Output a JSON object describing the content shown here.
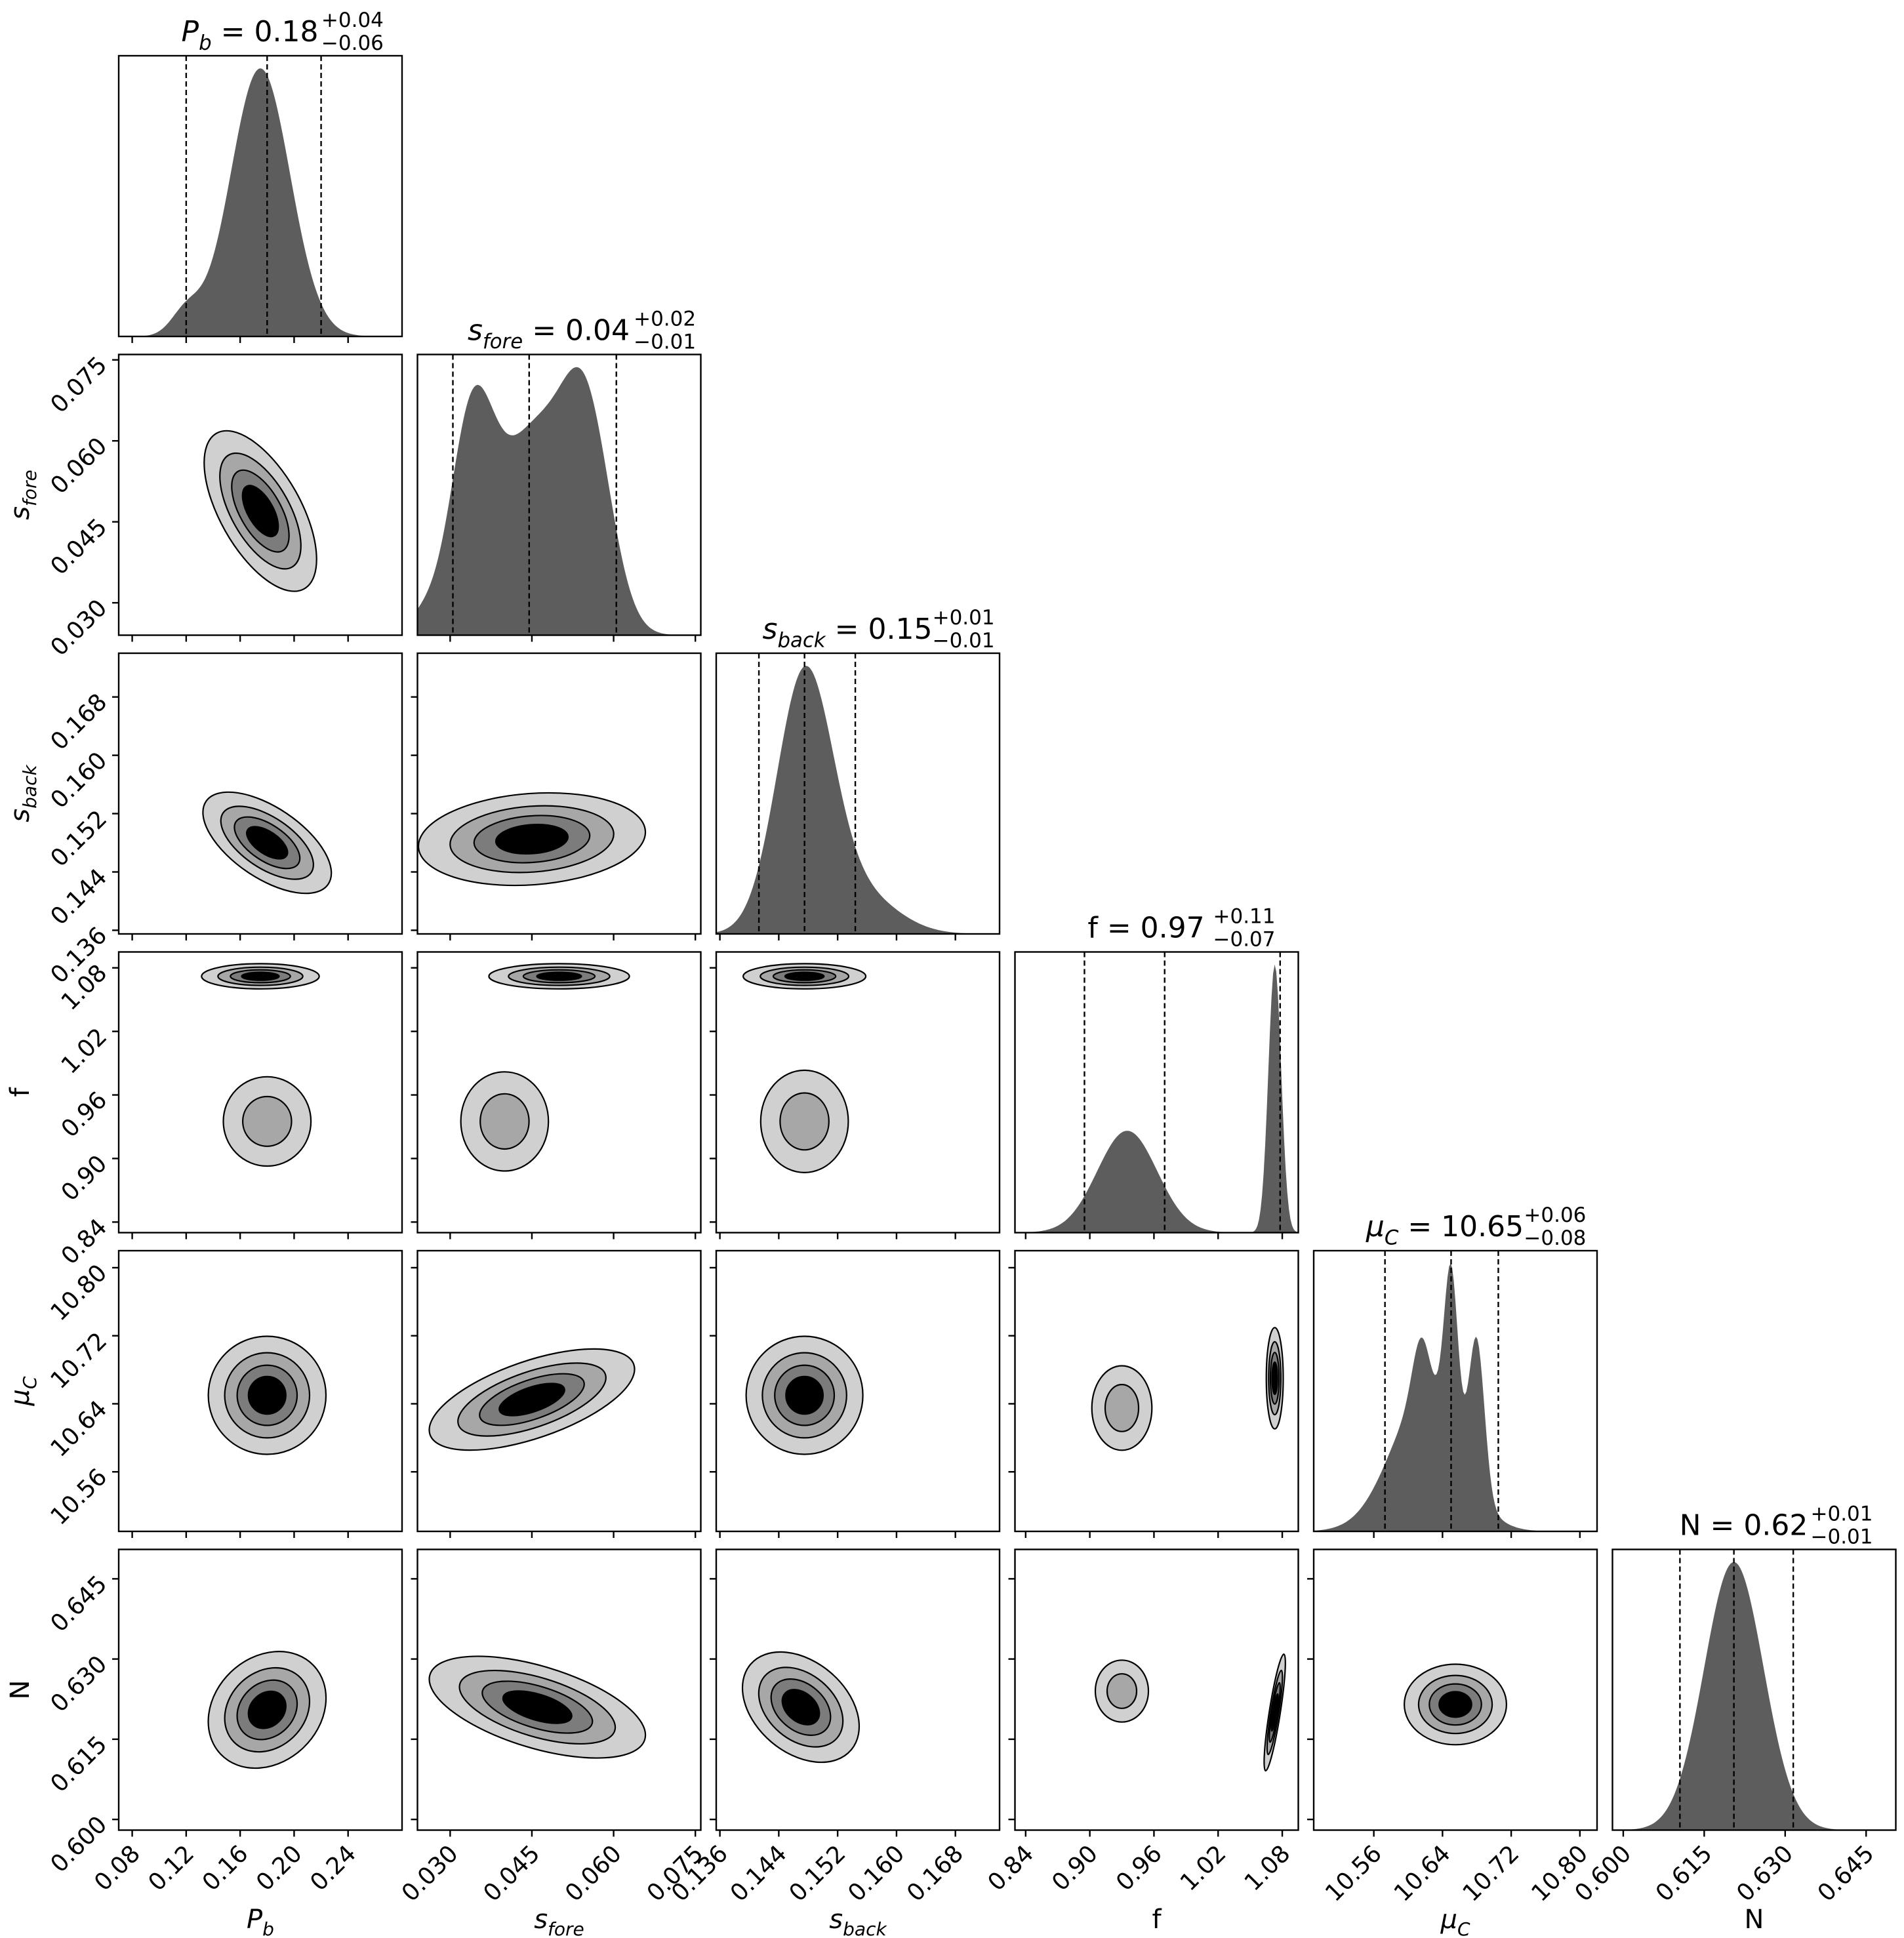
{
  "chart_data": {
    "type": "corner",
    "parameters": [
      {
        "key": "Pb",
        "label": "P",
        "sub": "b",
        "range": [
          0.07,
          0.28
        ],
        "ticks": [
          "0.08",
          "0.12",
          "0.16",
          "0.20",
          "0.24"
        ],
        "title": {
          "head": "P",
          "sub": "b",
          "tail": " = 0.18",
          "plus": "+0.04",
          "minus": "−0.06"
        }
      },
      {
        "key": "sfore",
        "label": "s",
        "sub": "fore",
        "range": [
          0.024,
          0.076
        ],
        "ticks": [
          "0.030",
          "0.045",
          "0.060",
          "0.075"
        ],
        "title": {
          "head": "s",
          "sub": "fore",
          "tail": " = 0.04",
          "plus": "+0.02",
          "minus": "−0.01"
        }
      },
      {
        "key": "sback",
        "label": "s",
        "sub": "back",
        "range": [
          0.1355,
          0.174
        ],
        "ticks": [
          "0.136",
          "0.144",
          "0.152",
          "0.160",
          "0.168"
        ],
        "title": {
          "head": "s",
          "sub": "back",
          "tail": " = 0.15",
          "plus": "+0.01",
          "minus": "−0.01"
        }
      },
      {
        "key": "f",
        "label": "f",
        "sub": "",
        "range": [
          0.83,
          1.095
        ],
        "ticks": [
          "0.84",
          "0.90",
          "0.96",
          "1.02",
          "1.08"
        ],
        "title": {
          "head": "f",
          "sub": "",
          "tail": " = 0.97",
          "plus": "+0.11",
          "minus": "−0.07"
        }
      },
      {
        "key": "muC",
        "label": "μ",
        "sub": "C",
        "range": [
          10.49,
          10.82
        ],
        "ticks": [
          "10.56",
          "10.64",
          "10.72",
          "10.80"
        ],
        "title": {
          "head": "μ",
          "sub": "C",
          "tail": " = 10.65",
          "plus": "+0.06",
          "minus": "−0.08"
        }
      },
      {
        "key": "N",
        "label": "N",
        "sub": "",
        "range": [
          0.598,
          0.6505
        ],
        "ticks": [
          "0.600",
          "0.615",
          "0.630",
          "0.645"
        ],
        "title": {
          "head": "N",
          "sub": "",
          "tail": " = 0.62",
          "plus": "+0.01",
          "minus": "−0.01"
        }
      }
    ],
    "quantiles": [
      [
        0.12,
        0.18,
        0.22
      ],
      [
        0.0305,
        0.0445,
        0.0605
      ],
      [
        0.1413,
        0.1475,
        0.1544
      ],
      [
        0.895,
        0.97,
        1.078
      ],
      [
        10.573,
        10.65,
        10.705
      ],
      [
        0.6105,
        0.6205,
        0.6315
      ]
    ],
    "marginals": [
      [
        {
          "mu": 0.12,
          "sd": 0.011,
          "w": 0.08
        },
        {
          "mu": 0.175,
          "sd": 0.022,
          "w": 0.9
        }
      ],
      [
        {
          "mu": 0.034,
          "sd": 0.004,
          "w": 0.6
        },
        {
          "mu": 0.045,
          "sd": 0.006,
          "w": 0.55
        },
        {
          "mu": 0.055,
          "sd": 0.0045,
          "w": 0.6
        },
        {
          "mu": 0.025,
          "sd": 0.003,
          "w": 0.05
        }
      ],
      [
        {
          "mu": 0.1475,
          "sd": 0.0038,
          "w": 1
        },
        {
          "mu": 0.155,
          "sd": 0.005,
          "w": 0.15
        }
      ],
      [
        {
          "mu": 0.935,
          "sd": 0.028,
          "w": 0.38
        },
        {
          "mu": 1.073,
          "sd": 0.006,
          "w": 1.0
        }
      ],
      [
        {
          "mu": 10.62,
          "sd": 0.04,
          "w": 0.45
        },
        {
          "mu": 10.65,
          "sd": 0.008,
          "w": 0.55
        },
        {
          "mu": 10.68,
          "sd": 0.009,
          "w": 0.5
        },
        {
          "mu": 10.615,
          "sd": 0.01,
          "w": 0.2
        }
      ],
      [
        {
          "mu": 0.6205,
          "sd": 0.0055,
          "w": 1
        }
      ]
    ],
    "blobs": {
      "1-0": [
        {
          "cx": 0.175,
          "cy": 0.047,
          "sx": 0.021,
          "sy": 0.0075,
          "r": -0.6
        },
        {
          "cx": 0.12,
          "cy": 0.042,
          "sx": 0.004,
          "sy": 0.0015,
          "r": 0,
          "w": 0.12
        }
      ],
      "2-0": [
        {
          "cx": 0.18,
          "cy": 0.148,
          "sx": 0.024,
          "sy": 0.0035,
          "r": -0.6
        }
      ],
      "2-1": [
        {
          "cx": 0.045,
          "cy": 0.1485,
          "sx": 0.0105,
          "sy": 0.0032,
          "r": 0.15
        }
      ],
      "3-0": [
        {
          "cx": 0.175,
          "cy": 1.072,
          "sx": 0.022,
          "sy": 0.006,
          "r": 0,
          "w": 1.0
        },
        {
          "cx": 0.18,
          "cy": 0.935,
          "sx": 0.02,
          "sy": 0.025,
          "r": 0,
          "w": 0.55
        },
        {
          "cx": 0.12,
          "cy": 0.957,
          "sx": 0.003,
          "sy": 0.008,
          "r": 0,
          "w": 0.06
        }
      ],
      "3-1": [
        {
          "cx": 0.05,
          "cy": 1.072,
          "sx": 0.0065,
          "sy": 0.006,
          "r": 0,
          "w": 1.0
        },
        {
          "cx": 0.04,
          "cy": 0.935,
          "sx": 0.0055,
          "sy": 0.025,
          "r": 0,
          "w": 0.55
        }
      ],
      "3-2": [
        {
          "cx": 0.1475,
          "cy": 1.072,
          "sx": 0.0042,
          "sy": 0.006,
          "r": 0,
          "w": 1.0
        },
        {
          "cx": 0.1475,
          "cy": 0.935,
          "sx": 0.0042,
          "sy": 0.025,
          "r": 0,
          "w": 0.55
        }
      ],
      "4-0": [
        {
          "cx": 0.18,
          "cy": 10.65,
          "sx": 0.022,
          "sy": 0.035,
          "r": 0
        },
        {
          "cx": 0.12,
          "cy": 10.6,
          "sx": 0.002,
          "sy": 0.005,
          "r": 0,
          "w": 0.05
        }
      ],
      "4-1": [
        {
          "cx": 0.045,
          "cy": 10.645,
          "sx": 0.0095,
          "sy": 0.03,
          "r": 0.6
        }
      ],
      "4-2": [
        {
          "cx": 0.1475,
          "cy": 10.65,
          "sx": 0.004,
          "sy": 0.035,
          "r": 0
        }
      ],
      "4-3": [
        {
          "cx": 0.93,
          "cy": 10.635,
          "sx": 0.017,
          "sy": 0.03,
          "r": 0,
          "w": 0.55
        },
        {
          "cx": 1.073,
          "cy": 10.67,
          "sx": 0.004,
          "sy": 0.03,
          "r": 0,
          "w": 1.0
        }
      ],
      "5-0": [
        {
          "cx": 0.18,
          "cy": 0.6205,
          "sx": 0.022,
          "sy": 0.0055,
          "r": 0.2
        },
        {
          "cx": 0.12,
          "cy": 0.625,
          "sx": 0.002,
          "sy": 0.0005,
          "r": 0,
          "w": 0.05
        }
      ],
      "5-1": [
        {
          "cx": 0.046,
          "cy": 0.621,
          "sx": 0.01,
          "sy": 0.0048,
          "r": -0.55
        }
      ],
      "5-2": [
        {
          "cx": 0.147,
          "cy": 0.621,
          "sx": 0.004,
          "sy": 0.0052,
          "r": -0.35
        }
      ],
      "5-3": [
        {
          "cx": 0.93,
          "cy": 0.624,
          "sx": 0.015,
          "sy": 0.0035,
          "r": 0,
          "w": 0.55
        },
        {
          "cx": 1.073,
          "cy": 0.62,
          "sx": 0.005,
          "sy": 0.0055,
          "r": 0.85,
          "w": 1.0
        }
      ],
      "5-4": [
        {
          "cx": 10.655,
          "cy": 0.6215,
          "sx": 0.03,
          "sy": 0.0038,
          "r": 0
        }
      ]
    }
  }
}
